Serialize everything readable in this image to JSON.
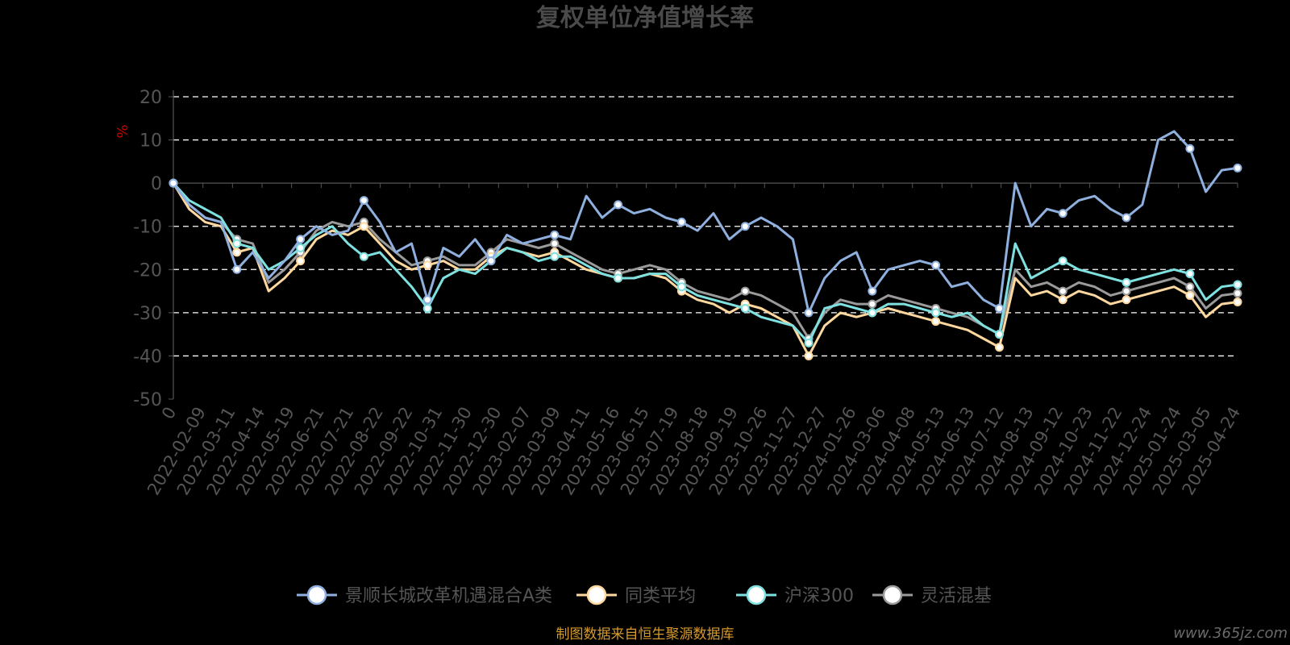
{
  "chart_data": {
    "type": "line",
    "title": "复权单位净值增长率",
    "yunit": "%",
    "ylim": [
      -50,
      20
    ],
    "yticks": [
      20,
      10,
      0,
      -10,
      -20,
      -30,
      -40,
      -50
    ],
    "x_tick_labels": [
      "0",
      "2022-02-09",
      "2022-03-11",
      "2022-04-14",
      "2022-05-19",
      "2022-06-21",
      "2022-07-21",
      "2022-08-22",
      "2022-09-22",
      "2022-10-31",
      "2022-11-30",
      "2022-12-30",
      "2023-02-07",
      "2023-03-09",
      "2023-04-11",
      "2023-05-16",
      "2023-06-15",
      "2023-07-19",
      "2023-08-18",
      "2023-09-19",
      "2023-10-26",
      "2023-11-27",
      "2023-12-27",
      "2024-01-26",
      "2024-03-06",
      "2024-04-08",
      "2024-05-13",
      "2024-06-13",
      "2024-07-12",
      "2024-08-13",
      "2024-09-12",
      "2024-10-23",
      "2024-11-22",
      "2024-12-24",
      "2025-01-24",
      "2025-03-05",
      "2025-04-24"
    ],
    "grid": "horizontal dashed",
    "legend_position": "bottom",
    "series": [
      {
        "name": "景顺长城改革机遇混合A类",
        "color": "#8fb0de",
        "values": [
          0,
          -5,
          -8,
          -9,
          -20,
          -16,
          -22,
          -18,
          -13,
          -10,
          -12,
          -11,
          -4,
          -9,
          -16,
          -14,
          -27,
          -15,
          -17,
          -13,
          -18,
          -12,
          -14,
          -13,
          -12,
          -13,
          -3,
          -8,
          -5,
          -7,
          -6,
          -8,
          -9,
          -11,
          -7,
          -13,
          -10,
          -8,
          -10,
          -13,
          -30,
          -22,
          -18,
          -16,
          -25,
          -20,
          -19,
          -18,
          -19,
          -24,
          -23,
          -27,
          -29,
          0,
          -10,
          -6,
          -7,
          -4,
          -3,
          -6,
          -8,
          -5,
          10,
          12,
          8,
          -2,
          3,
          3.5
        ]
      },
      {
        "name": "同类平均",
        "color": "#ffd8a0",
        "values": [
          0,
          -6,
          -9,
          -10,
          -16,
          -15,
          -25,
          -22,
          -18,
          -13,
          -11,
          -12,
          -10,
          -14,
          -18,
          -20,
          -19,
          -18,
          -20,
          -20,
          -17,
          -15,
          -16,
          -17,
          -16,
          -18,
          -20,
          -21,
          -22,
          -22,
          -21,
          -22,
          -25,
          -27,
          -28,
          -30,
          -28,
          -29,
          -31,
          -33,
          -40,
          -33,
          -30,
          -31,
          -30,
          -29,
          -30,
          -31,
          -32,
          -33,
          -34,
          -36,
          -38,
          -22,
          -26,
          -25,
          -27,
          -25,
          -26,
          -28,
          -27,
          -26,
          -25,
          -24,
          -26,
          -31,
          -28,
          -27.5
        ]
      },
      {
        "name": "沪深300",
        "color": "#7fe0e0",
        "values": [
          0,
          -4,
          -6,
          -8,
          -14,
          -15,
          -20,
          -18,
          -15,
          -12,
          -10,
          -14,
          -17,
          -16,
          -20,
          -24,
          -29,
          -22,
          -20,
          -21,
          -18,
          -15,
          -16,
          -18,
          -17,
          -17,
          -19,
          -21,
          -22,
          -22,
          -21,
          -21,
          -24,
          -26,
          -27,
          -28,
          -29,
          -31,
          -32,
          -33,
          -37,
          -29,
          -28,
          -29,
          -30,
          -28,
          -28,
          -29,
          -30,
          -31,
          -30,
          -33,
          -35,
          -14,
          -22,
          -20,
          -18,
          -20,
          -21,
          -22,
          -23,
          -22,
          -21,
          -20,
          -21,
          -27,
          -24,
          -23.5
        ]
      },
      {
        "name": "灵活混基",
        "color": "#9a9a9a",
        "values": [
          0,
          -5,
          -8,
          -9,
          -13,
          -14,
          -23,
          -20,
          -16,
          -11,
          -9,
          -10,
          -9,
          -13,
          -16,
          -19,
          -18,
          -17,
          -19,
          -19,
          -16,
          -13,
          -14,
          -15,
          -14,
          -16,
          -18,
          -20,
          -21,
          -20,
          -19,
          -20,
          -23,
          -25,
          -26,
          -27,
          -25,
          -26,
          -28,
          -30,
          -36,
          -30,
          -27,
          -28,
          -28,
          -26,
          -27,
          -28,
          -29,
          -30,
          -31,
          -33,
          -35,
          -20,
          -24,
          -23,
          -25,
          -23,
          -24,
          -26,
          -25,
          -24,
          -23,
          -22,
          -24,
          -29,
          -26,
          -25.5
        ]
      }
    ]
  },
  "footer": {
    "source": "制图数据来自恒生聚源数据库",
    "watermark": "www.365jz.com"
  }
}
